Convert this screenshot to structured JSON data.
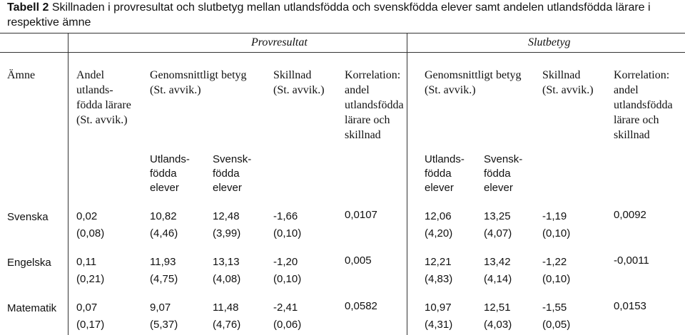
{
  "table": {
    "title_bold": "Tabell 2",
    "title_rest": " Skillnaden i provresultat och slutbetyg mellan utlandsfödda och svenskfödda elever samt andelen utlandsfödda lärare i respektive ämne",
    "group_headers": {
      "provresultat": "Provresultat",
      "slutbetyg": "Slutbetyg"
    },
    "column_headers": {
      "amne": "Ämne",
      "andel": "Andel\nutlands-\nfödda lärare\n(St. avvik.)",
      "genomsnitt_prov": "Genomsnittligt betyg\n(St. avvik.)",
      "skillnad_prov": "Skillnad\n(St. avvik.)",
      "korrelation_prov": "Korrelation:\nandel\nutlandsfödda\nlärare och\nskillnad",
      "genomsnitt_slut": "Genomsnittligt betyg\n(St. avvik.)",
      "skillnad_slut": "Skillnad\n(St. avvik.)",
      "korrelation_slut": "Korrelation:\nandel\nutlandsfödda\nlärare och\nskillnad"
    },
    "sub_headers": {
      "utlands_prov": "Utlands-\nfödda\nelever",
      "svensk_prov": "Svensk-\nfödda\nelever",
      "utlands_slut": "Utlands-\nfödda\nelever",
      "svensk_slut": "Svensk-\nfödda\nelever"
    },
    "rows": [
      {
        "subject": "Svenska",
        "andel": "0,02\n(0,08)",
        "prov_utlands": "10,82\n(4,46)",
        "prov_svensk": "12,48\n(3,99)",
        "prov_skillnad": "-1,66\n(0,10)",
        "prov_korr": "0,0107",
        "slut_utlands": "12,06\n(4,20)",
        "slut_svensk": "13,25\n(4,07)",
        "slut_skillnad": "-1,19\n(0,10)",
        "slut_korr": "0,0092"
      },
      {
        "subject": "Engelska",
        "andel": "0,11\n(0,21)",
        "prov_utlands": "11,93\n(4,75)",
        "prov_svensk": "13,13\n(4,08)",
        "prov_skillnad": "-1,20\n(0,10)",
        "prov_korr": "0,005",
        "slut_utlands": "12,21\n(4,83)",
        "slut_svensk": "13,42\n(4,14)",
        "slut_skillnad": "-1,22\n(0,10)",
        "slut_korr": "-0,0011"
      },
      {
        "subject": "Matematik",
        "andel": "0,07\n(0,17)",
        "prov_utlands": "9,07\n(5,37)",
        "prov_svensk": "11,48\n(4,76)",
        "prov_skillnad": "-2,41\n(0,06)",
        "prov_korr": "0,0582",
        "slut_utlands": "10,97\n(4,31)",
        "slut_svensk": "12,51\n(4,03)",
        "slut_skillnad": "-1,55\n(0,05)",
        "slut_korr": "0,0153"
      }
    ]
  }
}
